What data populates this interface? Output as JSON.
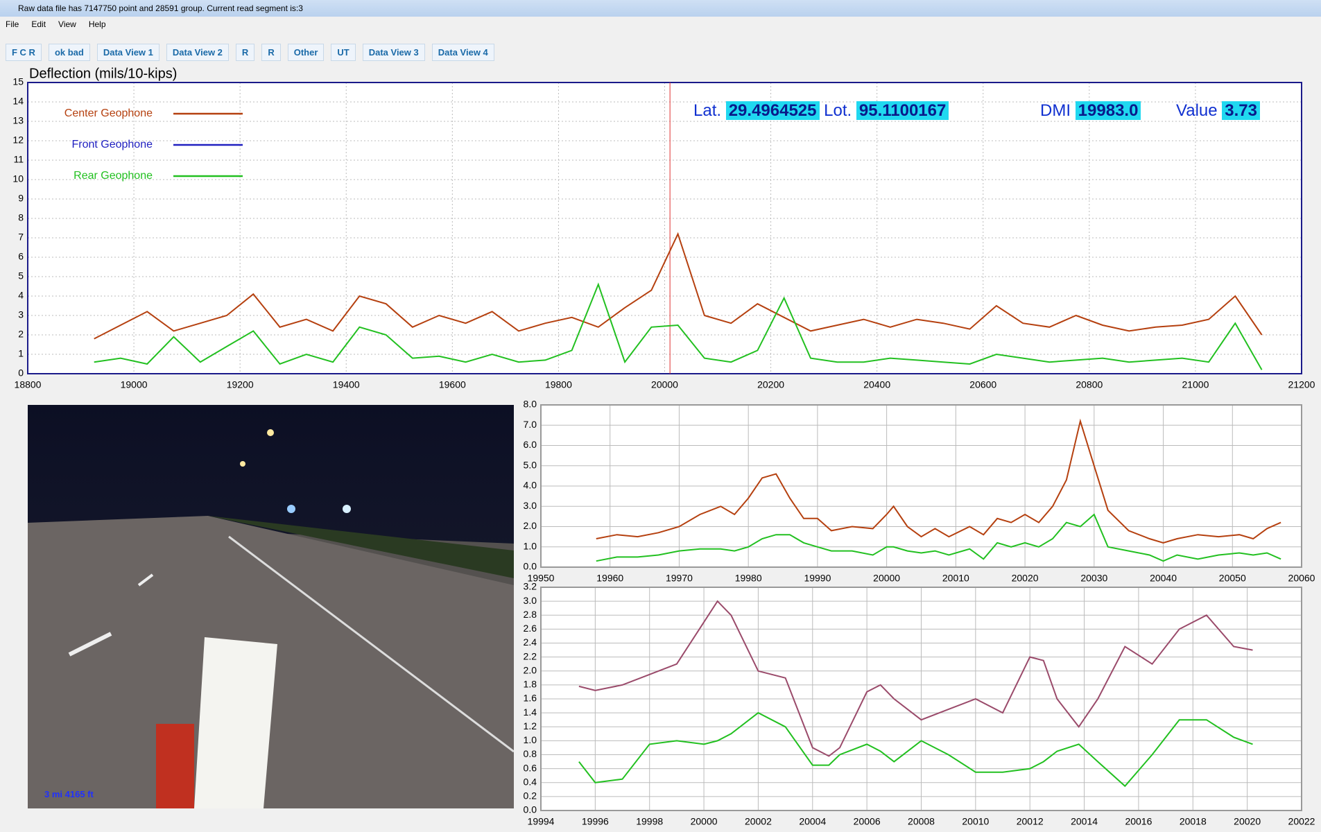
{
  "window": {
    "title": "Raw data file has 7147750 point and 28591 group. Current read segment is:3"
  },
  "menu": [
    "File",
    "Edit",
    "View",
    "Help"
  ],
  "toolbar": [
    "F C R",
    "ok bad",
    "Data View 1",
    "Data View 2",
    "R",
    "R",
    "Other",
    "UT",
    "Data View 3",
    "Data View 4"
  ],
  "readout": {
    "lat_label": "Lat.",
    "lat": "29.4964525",
    "lon_label": "Lot.",
    "lon": "95.1100167",
    "dmi_label": "DMI",
    "dmi": "19983.0",
    "value_label": "Value",
    "value": "3.73"
  },
  "video": {
    "overlay": "3 mi 4165 ft"
  },
  "chart_data": [
    {
      "type": "line",
      "title": "Deflection (mils/10-kips)",
      "grid": true,
      "legend": "top-left",
      "cursor_x": 20010,
      "xlim": [
        18800,
        21200
      ],
      "xticks": [
        18800,
        19000,
        19200,
        19400,
        19600,
        19800,
        20000,
        20200,
        20400,
        20600,
        20800,
        21000,
        21200
      ],
      "ylim": [
        0,
        15
      ],
      "yticks": [
        0,
        1,
        2,
        3,
        4,
        5,
        6,
        7,
        8,
        9,
        10,
        11,
        12,
        13,
        14,
        15
      ],
      "x": [
        18925,
        18975,
        19025,
        19075,
        19125,
        19175,
        19225,
        19275,
        19325,
        19375,
        19425,
        19475,
        19525,
        19575,
        19625,
        19675,
        19725,
        19775,
        19825,
        19875,
        19925,
        19975,
        20025,
        20075,
        20125,
        20175,
        20225,
        20275,
        20325,
        20375,
        20425,
        20475,
        20525,
        20575,
        20625,
        20675,
        20725,
        20775,
        20825,
        20875,
        20925,
        20975,
        21025,
        21075,
        21125
      ],
      "series": [
        {
          "name": "Center Geophone",
          "color": "#b5400f",
          "values": [
            1.8,
            2.5,
            3.2,
            2.2,
            2.6,
            3.0,
            4.1,
            2.4,
            2.8,
            2.2,
            4.0,
            3.6,
            2.4,
            3.0,
            2.6,
            3.2,
            2.2,
            2.6,
            2.9,
            2.4,
            3.4,
            4.3,
            7.2,
            3.0,
            2.6,
            3.6,
            2.9,
            2.2,
            2.5,
            2.8,
            2.4,
            2.8,
            2.6,
            2.3,
            3.5,
            2.6,
            2.4,
            3.0,
            2.5,
            2.2,
            2.4,
            2.5,
            2.8,
            4.0,
            2.0
          ]
        },
        {
          "name": "Front Geophone",
          "color": "#2020c0",
          "values": [
            null,
            null,
            null,
            null,
            null,
            null,
            null,
            null,
            null,
            null,
            null,
            null,
            null,
            null,
            null,
            null,
            null,
            null,
            null,
            null,
            null,
            null,
            null,
            null,
            null,
            null,
            null,
            null,
            null,
            null,
            null,
            null,
            null,
            null,
            null,
            null,
            null,
            null,
            null,
            null,
            null,
            null,
            null,
            null,
            null
          ]
        },
        {
          "name": "Rear Geophone",
          "color": "#22c020",
          "values": [
            0.6,
            0.8,
            0.5,
            1.9,
            0.6,
            1.4,
            2.2,
            0.5,
            1.0,
            0.6,
            2.4,
            2.0,
            0.8,
            0.9,
            0.6,
            1.0,
            0.6,
            0.7,
            1.2,
            4.6,
            0.6,
            2.4,
            2.5,
            0.8,
            0.6,
            1.2,
            3.9,
            0.8,
            0.6,
            0.6,
            0.8,
            0.7,
            0.6,
            0.5,
            1.0,
            0.8,
            0.6,
            0.7,
            0.8,
            0.6,
            0.7,
            0.8,
            0.6,
            2.6,
            0.2
          ]
        }
      ]
    },
    {
      "type": "line",
      "grid": true,
      "xlim": [
        19950,
        20060
      ],
      "xticks": [
        19950,
        19960,
        19970,
        19980,
        19990,
        20000,
        20010,
        20020,
        20030,
        20040,
        20050,
        20060
      ],
      "ylim": [
        0,
        8
      ],
      "yticks": [
        {
          "value": 0,
          "label": "0.0"
        },
        {
          "value": 1,
          "label": "1.0"
        },
        {
          "value": 2,
          "label": "2.0"
        },
        {
          "value": 3,
          "label": "3.0"
        },
        {
          "value": 4,
          "label": "4.0"
        },
        {
          "value": 5,
          "label": "5.0"
        },
        {
          "value": 6,
          "label": "6.0"
        },
        {
          "value": 7,
          "label": "7.0"
        },
        {
          "value": 8,
          "label": "8.0"
        }
      ],
      "x": [
        19958,
        19961,
        19964,
        19967,
        19970,
        19973,
        19976,
        19978,
        19980,
        19982,
        19984,
        19986,
        19988,
        19990,
        19992,
        19995,
        19998,
        20000,
        20001,
        20003,
        20005,
        20007,
        20009,
        20012,
        20014,
        20016,
        20018,
        20020,
        20022,
        20024,
        20026,
        20028,
        20030,
        20032,
        20035,
        20038,
        20040,
        20042,
        20045,
        20048,
        20051,
        20053,
        20055,
        20057
      ],
      "series": [
        {
          "name": "Center Geophone",
          "color": "#b5400f",
          "values": [
            1.4,
            1.6,
            1.5,
            1.7,
            2.0,
            2.6,
            3.0,
            2.6,
            3.4,
            4.4,
            4.6,
            3.4,
            2.4,
            2.4,
            1.8,
            2.0,
            1.9,
            2.6,
            3.0,
            2.0,
            1.5,
            1.9,
            1.5,
            2.0,
            1.6,
            2.4,
            2.2,
            2.6,
            2.2,
            3.0,
            4.3,
            7.2,
            5.0,
            2.8,
            1.8,
            1.4,
            1.2,
            1.4,
            1.6,
            1.5,
            1.6,
            1.4,
            1.9,
            2.2
          ]
        },
        {
          "name": "Rear Geophone",
          "color": "#22c020",
          "values": [
            0.3,
            0.5,
            0.5,
            0.6,
            0.8,
            0.9,
            0.9,
            0.8,
            1.0,
            1.4,
            1.6,
            1.6,
            1.2,
            1.0,
            0.8,
            0.8,
            0.6,
            1.0,
            1.0,
            0.8,
            0.7,
            0.8,
            0.6,
            0.9,
            0.4,
            1.2,
            1.0,
            1.2,
            1.0,
            1.4,
            2.2,
            2.0,
            2.6,
            1.0,
            0.8,
            0.6,
            0.3,
            0.6,
            0.4,
            0.6,
            0.7,
            0.6,
            0.7,
            0.4
          ]
        }
      ]
    },
    {
      "type": "line",
      "grid": true,
      "xlim": [
        19994,
        20022
      ],
      "xticks": [
        19994,
        19996,
        19998,
        20000,
        20002,
        20004,
        20006,
        20008,
        20010,
        20012,
        20014,
        20016,
        20018,
        20020,
        20022
      ],
      "ylim": [
        0,
        3.2
      ],
      "yticks": [
        {
          "value": 0,
          "label": "0.0"
        },
        {
          "value": 0.2,
          "label": "0.2"
        },
        {
          "value": 0.4,
          "label": "0.4"
        },
        {
          "value": 0.6,
          "label": "0.6"
        },
        {
          "value": 0.8,
          "label": "0.8"
        },
        {
          "value": 1,
          "label": "1.0"
        },
        {
          "value": 1.2,
          "label": "1.2"
        },
        {
          "value": 1.4,
          "label": "1.4"
        },
        {
          "value": 1.6,
          "label": "1.6"
        },
        {
          "value": 1.8,
          "label": "1.8"
        },
        {
          "value": 2,
          "label": "2.0"
        },
        {
          "value": 2.2,
          "label": "2.2"
        },
        {
          "value": 2.4,
          "label": "2.4"
        },
        {
          "value": 2.6,
          "label": "2.6"
        },
        {
          "value": 2.8,
          "label": "2.8"
        },
        {
          "value": 3,
          "label": "3.0"
        },
        {
          "value": 3.2,
          "label": "3.2"
        }
      ],
      "x": [
        19995.4,
        19996,
        19997,
        19998,
        19999,
        20000,
        20000.5,
        20001,
        20002,
        20003,
        20004,
        20004.6,
        20005,
        20006,
        20006.5,
        20007,
        20008,
        20009,
        20010,
        20011,
        20012,
        20012.5,
        20013,
        20013.8,
        20014.5,
        20015.5,
        20016.5,
        20017.5,
        20018.5,
        20019.5,
        20020.2
      ],
      "series": [
        {
          "name": "Center Geophone",
          "color": "#9a4a6a",
          "values": [
            1.78,
            1.72,
            1.8,
            1.95,
            2.1,
            2.7,
            3.0,
            2.8,
            2.0,
            1.9,
            0.9,
            0.78,
            0.9,
            1.7,
            1.8,
            1.6,
            1.3,
            1.45,
            1.6,
            1.4,
            2.2,
            2.15,
            1.6,
            1.2,
            1.6,
            2.35,
            2.1,
            2.6,
            2.8,
            2.35,
            2.3
          ]
        },
        {
          "name": "Rear Geophone",
          "color": "#22c020",
          "values": [
            0.7,
            0.4,
            0.45,
            0.95,
            1.0,
            0.95,
            1.0,
            1.1,
            1.4,
            1.2,
            0.65,
            0.65,
            0.8,
            0.95,
            0.85,
            0.7,
            1.0,
            0.8,
            0.55,
            0.55,
            0.6,
            0.7,
            0.85,
            0.95,
            0.7,
            0.35,
            0.8,
            1.3,
            1.3,
            1.05,
            0.95
          ]
        }
      ]
    }
  ]
}
